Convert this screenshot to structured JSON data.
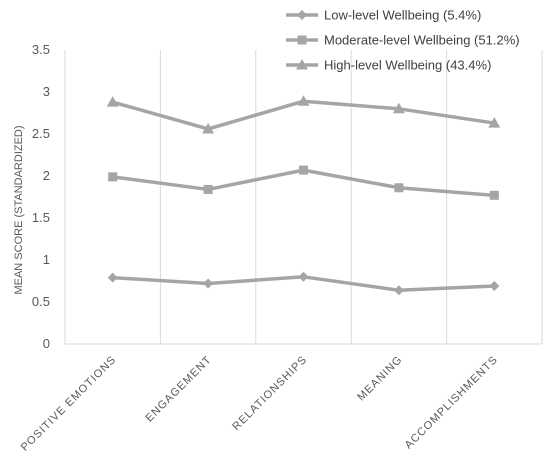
{
  "chart_data": {
    "type": "line",
    "title": "",
    "xlabel": "",
    "ylabel": "MEAN SCORE (STANDARDIZED)",
    "categories": [
      "POSITIVE EMOTIONS",
      "ENGAGEMENT",
      "RELATIONSHIPS",
      "MEANING",
      "ACCOMPLISHMENTS"
    ],
    "ylim": [
      0,
      3.5
    ],
    "yticks": [
      {
        "value": 0,
        "label": "0"
      },
      {
        "value": 0.5,
        "label": "0.5"
      },
      {
        "value": 1,
        "label": "1"
      },
      {
        "value": 1.5,
        "label": "1.5"
      },
      {
        "value": 2,
        "label": "2"
      },
      {
        "value": 2.5,
        "label": "2.5"
      },
      {
        "value": 3,
        "label": "3"
      },
      {
        "value": 3.5,
        "label": "3.5"
      }
    ],
    "grid": "vertical",
    "legend": "top-right",
    "series": [
      {
        "name": "Low-level Wellbeing (5.4%)",
        "marker": "diamond",
        "color": "#a5a5a5",
        "values": [
          0.79,
          0.72,
          0.8,
          0.64,
          0.69
        ]
      },
      {
        "name": "Moderate-level Wellbeing (51.2%)",
        "marker": "square",
        "color": "#a5a5a5",
        "values": [
          1.99,
          1.84,
          2.07,
          1.86,
          1.77
        ]
      },
      {
        "name": "High-level Wellbeing (43.4%)",
        "marker": "triangle",
        "color": "#a5a5a5",
        "values": [
          2.88,
          2.56,
          2.89,
          2.8,
          2.63
        ]
      }
    ]
  }
}
